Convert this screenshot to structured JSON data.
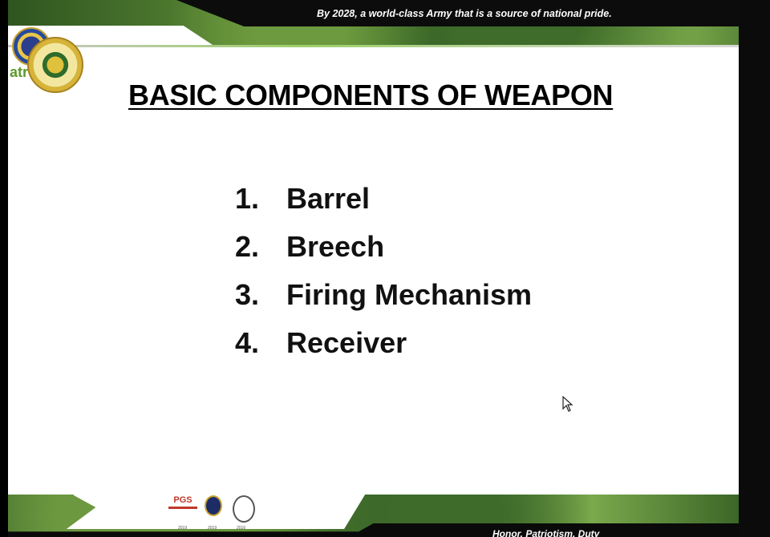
{
  "header": {
    "motto": "By 2028, a world-class Army that is a source of national pride.",
    "logo_letters": "atr"
  },
  "slide": {
    "title": "BASIC COMPONENTS OF WEAPON",
    "items": [
      {
        "num": "1.",
        "label": "Barrel"
      },
      {
        "num": "2.",
        "label": "Breech"
      },
      {
        "num": "3.",
        "label": "Firing Mechanism"
      },
      {
        "num": "4.",
        "label": "Receiver"
      }
    ]
  },
  "footer": {
    "core_values": "Honor, Patriotism, Duty",
    "cert_pgs": "PGS",
    "years": [
      "2019",
      "2019",
      "2016"
    ]
  },
  "colors": {
    "band_green": "#4c7a30",
    "band_black": "#0c0c0c",
    "text": "#000000"
  }
}
